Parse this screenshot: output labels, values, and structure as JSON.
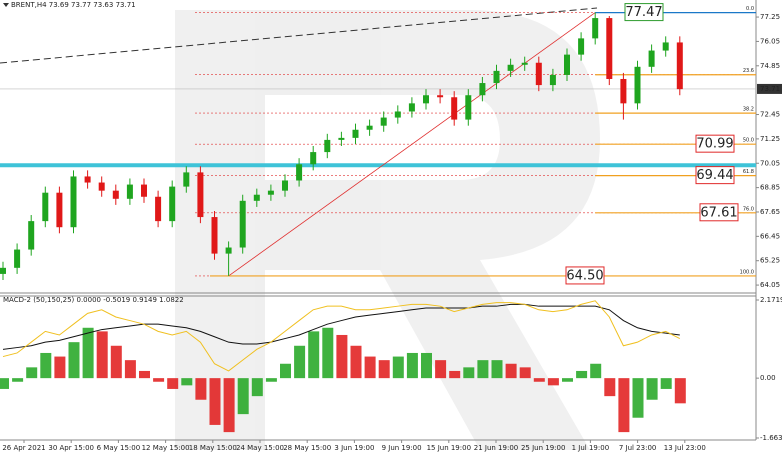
{
  "chart_data": {
    "type": "candlestick",
    "title": "BRENT,H4  73.69 73.77 73.63 73.71",
    "x_labels": [
      "26 Apr 2021",
      "30 Apr 15:00",
      "6 May 15:00",
      "12 May 15:00",
      "18 May 15:00",
      "24 May 15:00",
      "28 May 15:00",
      "3 Jun 19:00",
      "9 Jun 19:00",
      "15 Jun 19:00",
      "21 Jun 19:00",
      "25 Jun 19:00",
      "1 Jul 19:00",
      "7 Jul 23:00",
      "13 Jul 23:00"
    ],
    "open": [
      64.6,
      64.9,
      65.8,
      67.2,
      68.6,
      66.9,
      69.4,
      69.1,
      68.7,
      68.3,
      69.0,
      68.4,
      67.2,
      68.9,
      69.6,
      67.4,
      65.6,
      65.9,
      68.2,
      68.5,
      68.7,
      69.2,
      70.0,
      70.6,
      71.2,
      71.3,
      71.7,
      71.9,
      72.3,
      72.6,
      73.0,
      73.4,
      73.3,
      72.2,
      73.4,
      74.0,
      74.6,
      74.9,
      75.0,
      73.9,
      74.4,
      75.4,
      76.2,
      77.2,
      74.2,
      73.0,
      74.8,
      75.6,
      76.0
    ],
    "high": [
      65.2,
      66.1,
      67.5,
      68.9,
      68.9,
      69.7,
      69.7,
      69.4,
      69.0,
      69.3,
      69.3,
      68.7,
      69.2,
      69.9,
      69.9,
      67.7,
      66.2,
      68.5,
      68.8,
      69.0,
      69.5,
      70.3,
      70.9,
      71.5,
      71.6,
      72.0,
      72.2,
      72.6,
      72.9,
      73.3,
      73.7,
      73.7,
      73.6,
      73.7,
      74.3,
      74.9,
      75.2,
      75.3,
      75.3,
      74.7,
      75.7,
      76.5,
      77.47,
      77.3,
      74.5,
      75.1,
      75.9,
      76.3,
      76.3
    ],
    "low": [
      64.3,
      64.6,
      65.5,
      66.9,
      66.6,
      66.6,
      68.8,
      68.4,
      68.0,
      68.0,
      68.1,
      66.9,
      66.9,
      68.6,
      67.1,
      65.3,
      64.5,
      65.6,
      67.9,
      68.2,
      68.4,
      68.9,
      69.7,
      70.3,
      70.9,
      71.0,
      71.4,
      71.6,
      72.0,
      72.3,
      72.7,
      73.0,
      71.9,
      71.9,
      73.1,
      73.7,
      74.3,
      74.6,
      73.6,
      73.6,
      74.1,
      75.1,
      75.9,
      73.9,
      72.2,
      72.7,
      74.5,
      75.3,
      73.4
    ],
    "close": [
      64.9,
      65.8,
      67.2,
      68.6,
      66.9,
      69.4,
      69.1,
      68.7,
      68.3,
      69.0,
      68.4,
      67.2,
      68.9,
      69.6,
      67.4,
      65.6,
      65.9,
      68.2,
      68.5,
      68.7,
      69.2,
      70.0,
      70.6,
      71.2,
      71.3,
      71.7,
      71.9,
      72.3,
      72.6,
      73.0,
      73.4,
      73.3,
      72.2,
      73.4,
      74.0,
      74.6,
      74.9,
      75.0,
      73.9,
      74.4,
      75.4,
      76.2,
      77.2,
      74.2,
      73.0,
      74.8,
      75.6,
      76.0,
      73.7
    ],
    "up_color": "#1fa51f",
    "down_color": "#e01818",
    "ylim": [
      63.66,
      78.09
    ],
    "yticks": [
      77.25,
      76.05,
      74.85,
      72.45,
      71.25,
      70.05,
      68.85,
      67.65,
      66.45,
      65.25,
      64.05
    ],
    "current_price": 73.71,
    "support_line": {
      "value": 69.95,
      "color": "#3ec3d8"
    },
    "fib_levels": [
      {
        "label": "0.0",
        "price": 77.47
      },
      {
        "label": "23.6",
        "price": 74.41
      },
      {
        "label": "38.2",
        "price": 72.52
      },
      {
        "label": "50.0",
        "price": 70.99
      },
      {
        "label": "61.8",
        "price": 69.44
      },
      {
        "label": "76.0",
        "price": 67.61
      },
      {
        "label": "100.0",
        "price": 64.5
      }
    ],
    "price_boxes": [
      77.47,
      70.99,
      69.44,
      67.61,
      {
        "value": 64.5,
        "label": "64.50"
      }
    ],
    "price_box_colors": [
      "#2e9b2e",
      "#e02828",
      "#e02828",
      "#e02828",
      "#e02828"
    ],
    "macd": {
      "title": "MACD-2 (50,150,25) 0.0000 -0.5019 0.9149 1.0822",
      "ylim": [
        -1.6635,
        2.1719
      ],
      "yticks": [
        2.1719,
        {
          "value": 0,
          "label": "0.00"
        },
        -1.6635
      ],
      "histogram": [
        -0.3,
        -0.1,
        0.3,
        0.7,
        0.6,
        1.0,
        1.4,
        1.3,
        0.9,
        0.5,
        0.2,
        -0.1,
        -0.3,
        -0.2,
        -0.6,
        -1.3,
        -1.5,
        -1.0,
        -0.5,
        -0.1,
        0.4,
        0.9,
        1.3,
        1.4,
        1.2,
        0.9,
        0.6,
        0.5,
        0.6,
        0.7,
        0.7,
        0.5,
        0.2,
        0.3,
        0.5,
        0.5,
        0.4,
        0.3,
        -0.1,
        -0.2,
        -0.1,
        0.2,
        0.4,
        -0.5,
        -1.5,
        -1.1,
        -0.6,
        -0.3,
        -0.7
      ],
      "lines": [
        {
          "color": "#111111",
          "values": [
            0.8,
            0.85,
            0.9,
            1.0,
            1.05,
            1.15,
            1.25,
            1.35,
            1.4,
            1.45,
            1.5,
            1.5,
            1.45,
            1.4,
            1.3,
            1.15,
            1.0,
            0.95,
            0.95,
            1.0,
            1.1,
            1.2,
            1.35,
            1.5,
            1.6,
            1.7,
            1.75,
            1.8,
            1.85,
            1.9,
            1.95,
            1.95,
            1.95,
            1.95,
            2.0,
            2.0,
            2.05,
            2.05,
            2.0,
            2.0,
            2.0,
            2.0,
            2.0,
            1.9,
            1.6,
            1.4,
            1.3,
            1.25,
            1.2
          ]
        },
        {
          "color": "#f0c020",
          "values": [
            0.6,
            0.7,
            1.0,
            1.3,
            1.2,
            1.5,
            1.8,
            1.9,
            1.7,
            1.6,
            1.5,
            1.3,
            1.2,
            1.3,
            1.0,
            0.4,
            0.2,
            0.5,
            0.8,
            1.0,
            1.3,
            1.6,
            1.9,
            2.0,
            2.0,
            1.9,
            1.9,
            1.95,
            2.0,
            2.05,
            2.05,
            2.0,
            1.85,
            1.95,
            2.05,
            2.1,
            2.1,
            2.05,
            1.9,
            1.85,
            1.9,
            2.05,
            2.15,
            1.7,
            0.9,
            1.0,
            1.2,
            1.3,
            1.1
          ]
        }
      ]
    }
  }
}
